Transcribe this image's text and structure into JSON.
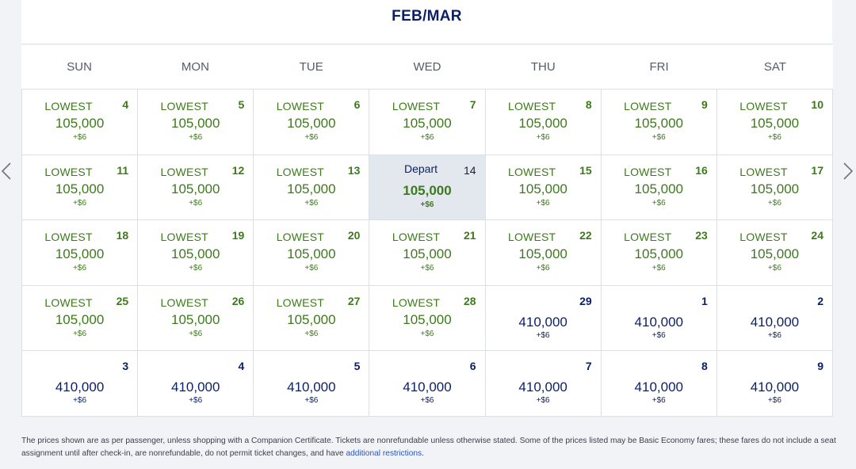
{
  "header": {
    "title": "FEB/MAR"
  },
  "weekdays": [
    "SUN",
    "MON",
    "TUE",
    "WED",
    "THU",
    "FRI",
    "SAT"
  ],
  "cells": [
    {
      "day": "4",
      "label": "LOWEST",
      "price": "105,000",
      "tax": "+$6",
      "tone": "green"
    },
    {
      "day": "5",
      "label": "LOWEST",
      "price": "105,000",
      "tax": "+$6",
      "tone": "green"
    },
    {
      "day": "6",
      "label": "LOWEST",
      "price": "105,000",
      "tax": "+$6",
      "tone": "green"
    },
    {
      "day": "7",
      "label": "LOWEST",
      "price": "105,000",
      "tax": "+$6",
      "tone": "green"
    },
    {
      "day": "8",
      "label": "LOWEST",
      "price": "105,000",
      "tax": "+$6",
      "tone": "green"
    },
    {
      "day": "9",
      "label": "LOWEST",
      "price": "105,000",
      "tax": "+$6",
      "tone": "green"
    },
    {
      "day": "10",
      "label": "LOWEST",
      "price": "105,000",
      "tax": "+$6",
      "tone": "green"
    },
    {
      "day": "11",
      "label": "LOWEST",
      "price": "105,000",
      "tax": "+$6",
      "tone": "green"
    },
    {
      "day": "12",
      "label": "LOWEST",
      "price": "105,000",
      "tax": "+$6",
      "tone": "green"
    },
    {
      "day": "13",
      "label": "LOWEST",
      "price": "105,000",
      "tax": "+$6",
      "tone": "green"
    },
    {
      "day": "14",
      "label": "Depart",
      "price": "105,000",
      "tax": "+$6",
      "tone": "selected"
    },
    {
      "day": "15",
      "label": "LOWEST",
      "price": "105,000",
      "tax": "+$6",
      "tone": "green"
    },
    {
      "day": "16",
      "label": "LOWEST",
      "price": "105,000",
      "tax": "+$6",
      "tone": "green"
    },
    {
      "day": "17",
      "label": "LOWEST",
      "price": "105,000",
      "tax": "+$6",
      "tone": "green"
    },
    {
      "day": "18",
      "label": "LOWEST",
      "price": "105,000",
      "tax": "+$6",
      "tone": "green"
    },
    {
      "day": "19",
      "label": "LOWEST",
      "price": "105,000",
      "tax": "+$6",
      "tone": "green"
    },
    {
      "day": "20",
      "label": "LOWEST",
      "price": "105,000",
      "tax": "+$6",
      "tone": "green"
    },
    {
      "day": "21",
      "label": "LOWEST",
      "price": "105,000",
      "tax": "+$6",
      "tone": "green"
    },
    {
      "day": "22",
      "label": "LOWEST",
      "price": "105,000",
      "tax": "+$6",
      "tone": "green"
    },
    {
      "day": "23",
      "label": "LOWEST",
      "price": "105,000",
      "tax": "+$6",
      "tone": "green"
    },
    {
      "day": "24",
      "label": "LOWEST",
      "price": "105,000",
      "tax": "+$6",
      "tone": "green"
    },
    {
      "day": "25",
      "label": "LOWEST",
      "price": "105,000",
      "tax": "+$6",
      "tone": "green"
    },
    {
      "day": "26",
      "label": "LOWEST",
      "price": "105,000",
      "tax": "+$6",
      "tone": "green"
    },
    {
      "day": "27",
      "label": "LOWEST",
      "price": "105,000",
      "tax": "+$6",
      "tone": "green"
    },
    {
      "day": "28",
      "label": "LOWEST",
      "price": "105,000",
      "tax": "+$6",
      "tone": "green"
    },
    {
      "day": "29",
      "label": "",
      "price": "410,000",
      "tax": "+$6",
      "tone": "blue"
    },
    {
      "day": "1",
      "label": "",
      "price": "410,000",
      "tax": "+$6",
      "tone": "blue"
    },
    {
      "day": "2",
      "label": "",
      "price": "410,000",
      "tax": "+$6",
      "tone": "blue"
    },
    {
      "day": "3",
      "label": "",
      "price": "410,000",
      "tax": "+$6",
      "tone": "blue"
    },
    {
      "day": "4",
      "label": "",
      "price": "410,000",
      "tax": "+$6",
      "tone": "blue"
    },
    {
      "day": "5",
      "label": "",
      "price": "410,000",
      "tax": "+$6",
      "tone": "blue"
    },
    {
      "day": "6",
      "label": "",
      "price": "410,000",
      "tax": "+$6",
      "tone": "blue"
    },
    {
      "day": "7",
      "label": "",
      "price": "410,000",
      "tax": "+$6",
      "tone": "blue"
    },
    {
      "day": "8",
      "label": "",
      "price": "410,000",
      "tax": "+$6",
      "tone": "blue"
    },
    {
      "day": "9",
      "label": "",
      "price": "410,000",
      "tax": "+$6",
      "tone": "blue"
    }
  ],
  "navigation": {
    "prev_icon": "chevron-left-icon",
    "next_icon": "chevron-right-icon"
  },
  "disclaimer": {
    "text": "The prices shown are as per passenger, unless shopping with a Companion Certificate. Tickets are nonrefundable unless otherwise stated. Some of the prices listed may be Basic Economy fares; these fares do not include a seat assignment until after check-in, are nonrefundable, do not permit ticket changes, and have ",
    "link": "additional restrictions",
    "end": "."
  },
  "colors": {
    "green": "#3d7a1c",
    "navy": "#0b1f66",
    "selected_bg": "#e3e8ef",
    "link": "#2a55b8"
  }
}
